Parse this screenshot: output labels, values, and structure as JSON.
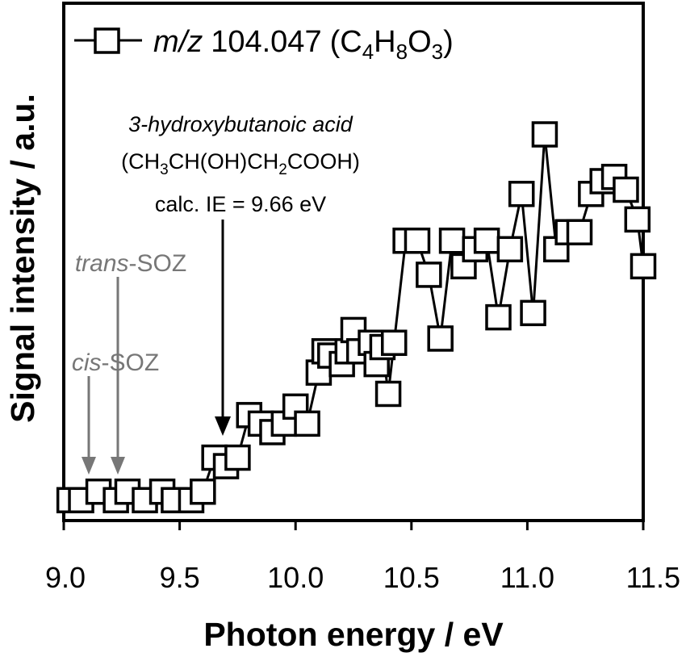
{
  "chart_data": {
    "type": "scatter",
    "xlabel": "Photon energy / eV",
    "ylabel": "Signal intensity / a.u.",
    "xlim": [
      9.0,
      11.5
    ],
    "ylim": [
      0,
      1.0
    ],
    "x_ticks": [
      "9.0",
      "9.5",
      "10.0",
      "10.5",
      "11.0",
      "11.5"
    ],
    "legend": {
      "prefix": "m/z",
      "mass": "104.047",
      "formula_open": "(C",
      "formula_sub1": "4",
      "formula_h": "H",
      "formula_sub2": "8",
      "formula_o": "O",
      "formula_sub3": "3",
      "formula_close": ")"
    },
    "series": [
      {
        "name": "m/z 104.047 (C4H8O3)",
        "color": "#000000",
        "marker": "open-square",
        "x": [
          9.025,
          9.075,
          9.15,
          9.225,
          9.275,
          9.35,
          9.425,
          9.475,
          9.55,
          9.6,
          9.65,
          9.7,
          9.75,
          9.8,
          9.85,
          9.9,
          9.95,
          10.0,
          10.05,
          10.1,
          10.125,
          10.15,
          10.2,
          10.225,
          10.25,
          10.275,
          10.325,
          10.35,
          10.375,
          10.4,
          10.425,
          10.475,
          10.525,
          10.575,
          10.625,
          10.675,
          10.725,
          10.775,
          10.825,
          10.875,
          10.925,
          10.975,
          11.025,
          11.075,
          11.125,
          11.175,
          11.225,
          11.275,
          11.325,
          11.375,
          11.425,
          11.475,
          11.5
        ],
        "y": [
          0.01,
          0.01,
          0.03,
          0.01,
          0.03,
          0.01,
          0.03,
          0.01,
          0.01,
          0.03,
          0.11,
          0.09,
          0.11,
          0.21,
          0.19,
          0.17,
          0.19,
          0.23,
          0.19,
          0.31,
          0.36,
          0.35,
          0.33,
          0.36,
          0.41,
          0.36,
          0.38,
          0.33,
          0.37,
          0.26,
          0.38,
          0.62,
          0.62,
          0.54,
          0.39,
          0.62,
          0.56,
          0.6,
          0.62,
          0.44,
          0.6,
          0.73,
          0.45,
          0.87,
          0.6,
          0.64,
          0.64,
          0.73,
          0.76,
          0.77,
          0.74,
          0.67,
          0.56
        ]
      }
    ],
    "annotations": [
      {
        "name_italic": "3-hydroxybutanoic acid",
        "formula": "(CH3CH(OH)CH2COOH)",
        "ie_text": "calc. IE = 9.66 eV",
        "x": 9.66,
        "color": "#000000"
      },
      {
        "name_italic": "trans",
        "suffix": "-SOZ",
        "x": 9.23,
        "color": "#777777"
      },
      {
        "name_italic": "cis",
        "suffix": "-SOZ",
        "x": 9.1,
        "color": "#777777"
      }
    ]
  },
  "text": {
    "cmpd_name": "3-hydroxybutanoic acid",
    "cmpd_f1": "(CH",
    "cmpd_f2": "3",
    "cmpd_f3": "CH(OH)CH",
    "cmpd_f4": "2",
    "cmpd_f5": "COOH)",
    "ie": "calc. IE = 9.66 eV",
    "trans": "trans",
    "cis": "cis",
    "soz": "-SOZ"
  }
}
